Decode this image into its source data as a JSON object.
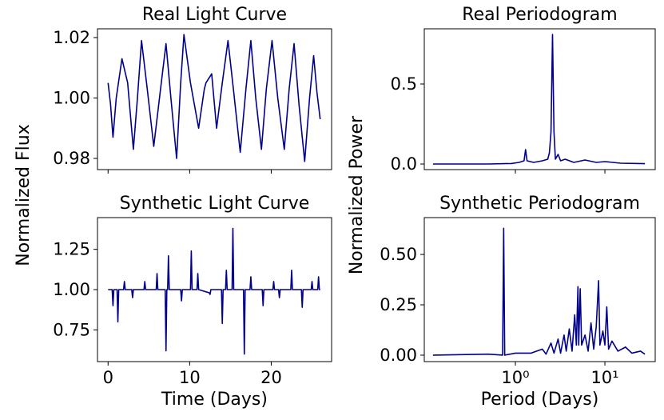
{
  "chart_data": [
    {
      "type": "line",
      "title": "Real Light Curve",
      "ylabel": "Normalized Flux",
      "x": [
        0,
        0.3,
        0.6,
        1.0,
        1.7,
        2.4,
        3.1,
        3.6,
        4.1,
        4.8,
        5.6,
        6.3,
        7.1,
        7.7,
        8.4,
        8.9,
        9.3,
        10.1,
        11.1,
        11.8,
        12.0,
        12.7,
        13.3,
        14.0,
        14.7,
        15.4,
        16.2,
        16.9,
        17.5,
        18.1,
        18.8,
        19.4,
        20.1,
        20.8,
        21.6,
        22.2,
        22.8,
        23.4,
        24.1,
        24.7,
        25.2,
        25.6,
        26.0
      ],
      "series": [
        {
          "color": "#00008b",
          "values": [
            1.005,
            0.998,
            0.987,
            1.0,
            1.013,
            1.005,
            0.983,
            1.0,
            1.019,
            1.003,
            0.984,
            1.0,
            1.018,
            1.0,
            0.98,
            1.005,
            1.021,
            1.005,
            0.99,
            1.003,
            1.005,
            1.008,
            0.99,
            1.005,
            1.019,
            1.002,
            0.982,
            1.003,
            1.019,
            1.0,
            0.983,
            1.003,
            1.019,
            1.0,
            0.983,
            1.003,
            1.018,
            0.998,
            0.979,
            1.0,
            1.014,
            1.002,
            0.993
          ]
        }
      ],
      "xlim": [
        -1.3,
        27.4
      ],
      "ylim": [
        0.9763,
        1.0229
      ],
      "xticks": [
        0,
        10,
        20
      ],
      "yticks": [
        {
          "value": 0.98,
          "label": "0.98"
        },
        {
          "value": 1.0,
          "label": "1.00"
        },
        {
          "value": 1.02,
          "label": "1.02"
        }
      ]
    },
    {
      "type": "line",
      "title": "Synthetic Light Curve",
      "xlabel": "Time (Days)",
      "x": [
        0,
        0.5,
        0.6,
        0.7,
        1.1,
        1.2,
        1.3,
        1.9,
        2.0,
        2.1,
        2.9,
        3.0,
        3.1,
        4.4,
        4.5,
        4.6,
        5.9,
        6.0,
        6.1,
        7.0,
        7.1,
        7.2,
        7.3,
        7.4,
        7.5,
        8.9,
        9.0,
        9.1,
        10.1,
        10.2,
        10.3,
        10.9,
        11.0,
        11.1,
        12.4,
        12.5,
        12.6,
        13.9,
        14.0,
        14.1,
        14.4,
        14.5,
        14.6,
        15.2,
        15.3,
        15.4,
        16.6,
        16.7,
        16.8,
        17.4,
        17.5,
        17.6,
        18.9,
        19.0,
        19.1,
        20.2,
        20.3,
        20.4,
        20.9,
        21.0,
        21.1,
        22.4,
        22.5,
        22.6,
        23.7,
        23.8,
        23.9,
        24.9,
        25.0,
        25.1,
        25.7,
        25.8,
        25.9,
        26.0
      ],
      "series": [
        {
          "color": "#00008b",
          "values": [
            1.0,
            1.0,
            0.9,
            1.0,
            1.0,
            0.8,
            1.0,
            1.0,
            1.05,
            1.0,
            1.0,
            0.95,
            1.0,
            1.0,
            1.05,
            1.0,
            1.0,
            1.1,
            1.0,
            1.0,
            0.62,
            1.0,
            1.0,
            1.21,
            1.0,
            1.0,
            0.93,
            1.0,
            1.0,
            1.24,
            1.0,
            1.0,
            1.1,
            1.0,
            0.98,
            0.97,
            1.0,
            1.0,
            0.79,
            1.0,
            1.0,
            1.12,
            1.0,
            1.0,
            1.38,
            1.0,
            1.0,
            0.6,
            1.0,
            1.0,
            1.08,
            1.0,
            1.0,
            0.9,
            1.0,
            1.0,
            1.05,
            1.0,
            1.0,
            0.95,
            1.0,
            1.0,
            1.12,
            1.0,
            1.0,
            0.89,
            1.0,
            1.0,
            1.05,
            1.0,
            1.0,
            1.08,
            1.0,
            1.0
          ]
        }
      ],
      "xlim": [
        -1.3,
        27.4
      ],
      "ylim": [
        0.553,
        1.447
      ],
      "xticks": [
        0,
        10,
        20
      ],
      "yticks": [
        {
          "value": 0.75,
          "label": "0.75"
        },
        {
          "value": 1.0,
          "label": "1.00"
        },
        {
          "value": 1.25,
          "label": "1.25"
        }
      ]
    },
    {
      "type": "line",
      "title": "Real Periodogram",
      "ylabel": "Normalized Power",
      "xscale": "log",
      "x": [
        0.12,
        0.5,
        0.9,
        1.1,
        1.25,
        1.3,
        1.35,
        1.6,
        2.0,
        2.3,
        2.4,
        2.5,
        2.6,
        2.7,
        2.8,
        3.0,
        3.2,
        3.6,
        4.5,
        6,
        8,
        10,
        15,
        28
      ],
      "series": [
        {
          "color": "#00008b",
          "values": [
            0.0,
            0.0,
            0.003,
            0.01,
            0.02,
            0.09,
            0.02,
            0.01,
            0.02,
            0.03,
            0.07,
            0.2,
            0.81,
            0.2,
            0.03,
            0.06,
            0.02,
            0.03,
            0.01,
            0.025,
            0.01,
            0.015,
            0.005,
            0.002
          ]
        }
      ],
      "xlim": [
        0.096,
        36.5
      ],
      "ylim": [
        -0.035,
        0.845
      ],
      "xticks": [
        {
          "value": 1,
          "label": "10⁰"
        },
        {
          "value": 10,
          "label": "10¹"
        }
      ],
      "yticks": [
        {
          "value": 0.0,
          "label": "0.0"
        },
        0.5
      ]
    },
    {
      "type": "line",
      "title": "Synthetic Periodogram",
      "xlabel": "Period (Days)",
      "xscale": "log",
      "x": [
        0.12,
        0.5,
        0.72,
        0.74,
        0.76,
        1.0,
        1.5,
        2.0,
        2.2,
        2.5,
        2.7,
        3.0,
        3.2,
        3.5,
        3.7,
        4.0,
        4.3,
        4.6,
        4.8,
        5.0,
        5.1,
        5.3,
        5.5,
        6.0,
        6.5,
        7.0,
        7.5,
        8.0,
        8.5,
        8.8,
        9.5,
        10.0,
        10.5,
        11,
        12,
        14,
        17,
        20,
        25,
        28
      ],
      "series": [
        {
          "color": "#00008b",
          "values": [
            0.0,
            0.005,
            0.0,
            0.63,
            0.0,
            0.01,
            0.01,
            0.03,
            0.005,
            0.06,
            0.01,
            0.08,
            0.01,
            0.1,
            0.02,
            0.13,
            0.02,
            0.2,
            0.05,
            0.34,
            0.05,
            0.33,
            0.05,
            0.1,
            0.02,
            0.16,
            0.03,
            0.14,
            0.37,
            0.05,
            0.12,
            0.05,
            0.24,
            0.03,
            0.07,
            0.02,
            0.04,
            0.01,
            0.02,
            0.005
          ]
        }
      ],
      "xlim": [
        0.096,
        36.5
      ],
      "ylim": [
        -0.032,
        0.683
      ],
      "xticks": [
        {
          "value": 1,
          "label": "10⁰"
        },
        {
          "value": 10,
          "label": "10¹"
        }
      ],
      "yticks": [
        {
          "value": 0.0,
          "label": "0.00"
        },
        {
          "value": 0.25,
          "label": "0.25"
        },
        {
          "value": 0.5,
          "label": "0.50"
        }
      ]
    }
  ]
}
